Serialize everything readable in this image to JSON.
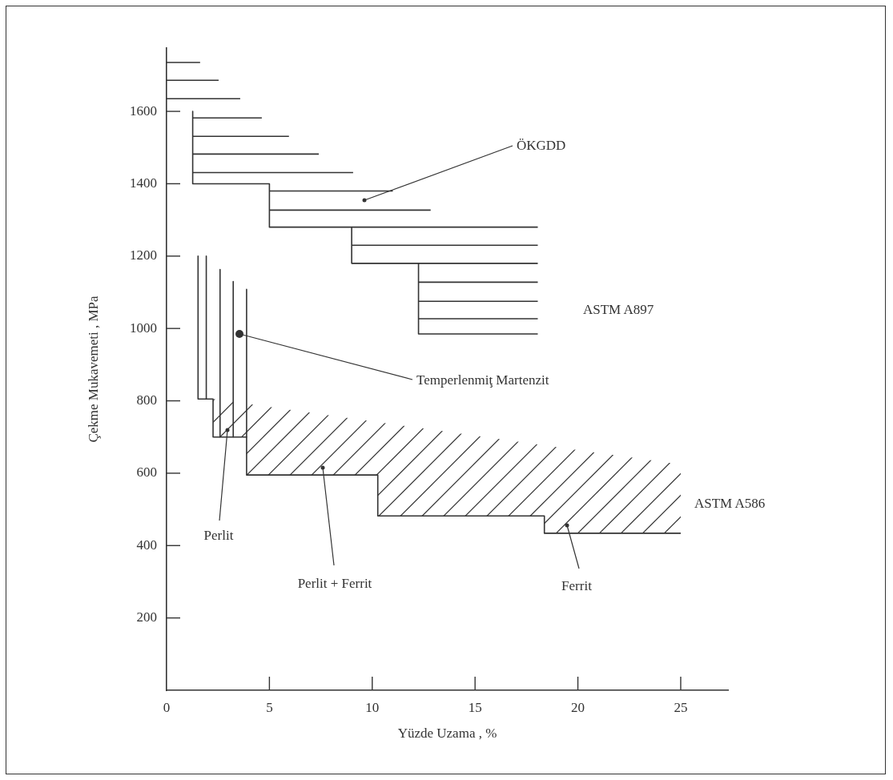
{
  "chart_data": {
    "type": "line",
    "xlabel": "Yüzde Uzama , %",
    "ylabel": "Çekme Mukavemeti , MPa",
    "xlim": [
      0,
      27.3
    ],
    "ylim": [
      0,
      1775
    ],
    "xticks": [
      0,
      5,
      10,
      15,
      20,
      25
    ],
    "yticks": [
      200,
      400,
      600,
      800,
      1000,
      1200,
      1400,
      1600
    ],
    "grid": false,
    "legend": false,
    "marker": "none",
    "line_style": "solid",
    "series": [
      {
        "color": "#333333",
        "x": [
          1.27,
          1.27,
          5,
          5,
          9,
          9,
          12.25,
          12.25,
          18.05
        ],
        "values": [
          1600,
          1400,
          1400,
          1280,
          1280,
          1180,
          1180,
          985,
          985
        ]
      },
      {
        "color": "#333333",
        "x": [
          0,
          1.63
        ],
        "values": [
          1735,
          1735
        ]
      },
      {
        "color": "#333333",
        "x": [
          0,
          2.53
        ],
        "values": [
          1686,
          1686
        ]
      },
      {
        "color": "#333333",
        "x": [
          0,
          3.58
        ],
        "values": [
          1635,
          1635
        ]
      },
      {
        "color": "#333333",
        "x": [
          1.27,
          4.63
        ],
        "values": [
          1582,
          1582
        ]
      },
      {
        "color": "#333333",
        "x": [
          1.27,
          5.95
        ],
        "values": [
          1531,
          1531
        ]
      },
      {
        "color": "#333333",
        "x": [
          1.27,
          7.4
        ],
        "values": [
          1482,
          1482
        ]
      },
      {
        "color": "#333333",
        "x": [
          1.27,
          9.07
        ],
        "values": [
          1431,
          1431
        ]
      },
      {
        "color": "#333333",
        "x": [
          5,
          11
        ],
        "values": [
          1380,
          1380
        ]
      },
      {
        "color": "#333333",
        "x": [
          5,
          12.84
        ],
        "values": [
          1327,
          1327
        ]
      },
      {
        "color": "#333333",
        "x": [
          9,
          18.05
        ],
        "values": [
          1280,
          1280
        ]
      },
      {
        "color": "#333333",
        "x": [
          9,
          18.05
        ],
        "values": [
          1230,
          1230
        ]
      },
      {
        "color": "#333333",
        "x": [
          12.25,
          18.05
        ],
        "values": [
          1180,
          1180
        ]
      },
      {
        "color": "#333333",
        "x": [
          12.25,
          18.05
        ],
        "values": [
          1128,
          1128
        ]
      },
      {
        "color": "#333333",
        "x": [
          12.25,
          18.05
        ],
        "values": [
          1075,
          1075
        ]
      },
      {
        "color": "#333333",
        "x": [
          12.25,
          18.05
        ],
        "values": [
          1027,
          1027
        ]
      },
      {
        "color": "#333333",
        "x": [
          1.93,
          1.93
        ],
        "values": [
          1200,
          805
        ]
      },
      {
        "color": "#333333",
        "x": [
          2.6,
          2.6
        ],
        "values": [
          1163,
          700
        ]
      },
      {
        "color": "#333333",
        "x": [
          3.24,
          3.24
        ],
        "values": [
          1130,
          700
        ]
      },
      {
        "color": "#333333",
        "x": [
          3.89,
          3.89
        ],
        "values": [
          1108,
          700
        ]
      },
      {
        "color": "#333333",
        "x": [
          1.53,
          1.53,
          2.26,
          2.26,
          3.89,
          3.89,
          10.27,
          10.27,
          18.37,
          18.37,
          25
        ],
        "values": [
          1200,
          805,
          805,
          700,
          700,
          595,
          595,
          482,
          482,
          434,
          434
        ]
      }
    ],
    "annotations": [
      "ÖKGDD",
      "ASTM A897",
      "Temperlenmiţ Martenzit",
      "Perlit",
      "Perlit + Ferrit",
      "ASTM A586",
      "Ferrit"
    ]
  }
}
